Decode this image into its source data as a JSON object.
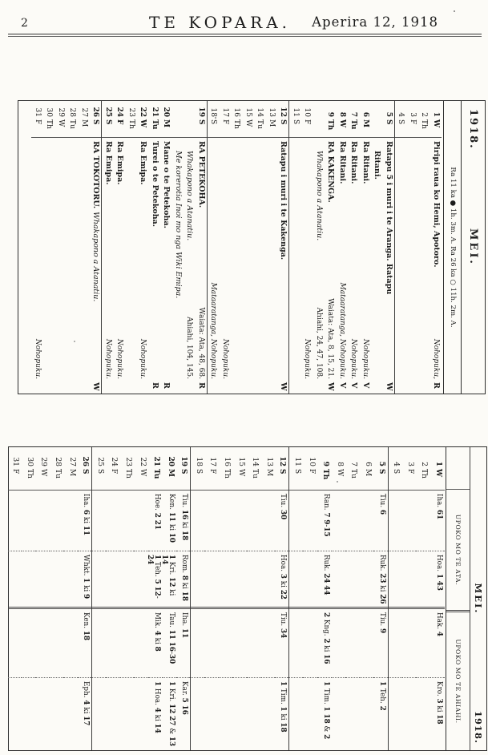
{
  "page": {
    "number": "2",
    "title": "TE KOPARA.",
    "date": "Aperira 12, 1918"
  },
  "calendar": {
    "year": "1918.",
    "month": "MEI.",
    "moon_line": "Ra 11 ka ● 1h. 3m. A.   Ra 26 ka ○ 11h. 2m. A.",
    "rows": [
      {
        "d": 1,
        "w": "W",
        "lines": [
          {
            "l": "Piripi raua ko Hemi, Apotoro.",
            "ls": "b",
            "r": "Nohopuku,",
            "rs": "i"
          }
        ],
        "c": "R"
      },
      {
        "d": 2,
        "w": "Th"
      },
      {
        "d": 3,
        "w": "F"
      },
      {
        "d": 4,
        "w": "S"
      },
      {
        "d": 5,
        "w": "S",
        "sun": true,
        "lines": [
          {
            "l": "Ratapu 5 i muri i te Aranga.  Ratapu",
            "ls": "b"
          },
          {
            "l": "Ritani.",
            "ls": "b",
            "ind": true
          }
        ],
        "c": "W"
      },
      {
        "d": 6,
        "w": "M",
        "lines": [
          {
            "l": "Ra Ritani.",
            "ls": "b",
            "r": "Nohopuku.",
            "rs": "i"
          }
        ],
        "c": "V"
      },
      {
        "d": 7,
        "w": "Tu",
        "lines": [
          {
            "l": "Ra Ritani.",
            "ls": "b",
            "r": "Nohopuku.",
            "rs": "i"
          }
        ],
        "c": "V"
      },
      {
        "d": 8,
        "w": "W",
        "lines": [
          {
            "l": "Ra Ritani.",
            "ls": "b",
            "r": "Mataaratanga, Nohopuku.",
            "rs": "i"
          }
        ],
        "c": "V"
      },
      {
        "d": 9,
        "w": "Th",
        "lines": [
          {
            "l": "RA KAKENGA.",
            "ls": "b",
            "r": "Waiata: Ata, 8, 15, 21.",
            "rs": "n"
          },
          {
            "l": "Whakapono a Atanatiu.",
            "ls": "i",
            "ind": true,
            "r": "Ahiahi, 24, 47, 108.",
            "rs": "n"
          }
        ],
        "c": "W"
      },
      {
        "d": 10,
        "w": "F",
        "lines": [
          {
            "r": "Nohopuku.",
            "rs": "i"
          }
        ]
      },
      {
        "d": 11,
        "w": "S"
      },
      {
        "d": 12,
        "w": "S",
        "sun": true,
        "lines": [
          {
            "l": "Ratapu i muri i te Kakenga.",
            "ls": "b"
          }
        ],
        "c": "W"
      },
      {
        "d": 13,
        "w": "M"
      },
      {
        "d": 14,
        "w": "Tu"
      },
      {
        "d": 15,
        "w": "W"
      },
      {
        "d": 16,
        "w": "Th"
      },
      {
        "d": 17,
        "w": "F",
        "lines": [
          {
            "r": "Nohopuku.",
            "rs": "i"
          }
        ]
      },
      {
        "d": 18,
        "w": "S",
        "lines": [
          {
            "r": "Mataaratanga, Nohopuku.",
            "rs": "i"
          }
        ]
      },
      {
        "d": 19,
        "w": "S",
        "sun": true,
        "lines": [
          {
            "l": "RA PETEKOHA.",
            "ls": "b",
            "r": "Waiata: Ata, 48, 68.",
            "rs": "n"
          },
          {
            "l": "Whakapono a Atanatiu.",
            "ls": "i",
            "ind": true,
            "r": "Ahiahi, 104, 145.",
            "rs": "n"
          },
          {
            "l": "Me korerotia Inoi mo nga Wiki Emipa.",
            "ls": "i",
            "ind": true
          }
        ],
        "c": "R"
      },
      {
        "d": 20,
        "w": "M",
        "lines": [
          {
            "l": "Mane o te Petekoha.",
            "ls": "b"
          }
        ],
        "c": "R"
      },
      {
        "d": 21,
        "w": "Tu",
        "lines": [
          {
            "l": "Turei o te Petekoha.",
            "ls": "b"
          }
        ],
        "c": "R"
      },
      {
        "d": 22,
        "w": "W",
        "lines": [
          {
            "l": "Ra Emipa.",
            "ls": "b",
            "r": "Nohopuku.",
            "rs": "i"
          }
        ]
      },
      {
        "d": 23,
        "w": "Th"
      },
      {
        "d": 24,
        "w": "F",
        "lines": [
          {
            "l": "Ra Emipa.",
            "ls": "b",
            "r": "Nohopuku.",
            "rs": "i"
          }
        ]
      },
      {
        "d": 25,
        "w": "S",
        "lines": [
          {
            "l": "Ra Emipa.",
            "ls": "b",
            "r": "Nohopuku.",
            "rs": "i"
          }
        ]
      },
      {
        "d": 26,
        "w": "S",
        "sun": true,
        "lines": [
          {
            "l": "RA TOKOTORU.",
            "ls": "b",
            "l2": "Whakapono a Atanatiu.",
            "l2s": "i"
          }
        ],
        "c": "W"
      },
      {
        "d": 27,
        "w": "M"
      },
      {
        "d": 28,
        "w": "Tu"
      },
      {
        "d": 29,
        "w": "W"
      },
      {
        "d": 30,
        "w": "Th"
      },
      {
        "d": 31,
        "w": "F",
        "lines": [
          {
            "r": "Nohopuku.",
            "rs": "i"
          }
        ]
      }
    ]
  },
  "lectionary": {
    "month": "MEI.",
    "year": "1918.",
    "morning_header": "UPOKO MO TE ATA.",
    "evening_header": "UPOKO MO TE AHIAHI.",
    "rows": [
      {
        "d": 1,
        "w": "W",
        "m1": "Iha. 61",
        "m2": "Hoa. 1 43",
        "e1": "Hak. 4",
        "e2": "Kro. 3 ki 18"
      },
      {
        "d": 2,
        "w": "Th"
      },
      {
        "d": 3,
        "w": "F"
      },
      {
        "d": 4,
        "w": "S"
      },
      {
        "d": 5,
        "w": "S",
        "sun": true,
        "m1": "Tiu. 6",
        "m2": "Ruk. 23 ki 26",
        "e1": "Tiu. 9",
        "e2": "1 Teh. 2"
      },
      {
        "d": 6,
        "w": "M"
      },
      {
        "d": 7,
        "w": "Tu"
      },
      {
        "d": 8,
        "w": "W"
      },
      {
        "d": 9,
        "w": "Th",
        "m1": "Ran. 7 9-15",
        "m2": "Ruk. 24 44",
        "e1": "2 Kng. 2 ki 16",
        "e2": "1 Tim. 1 18 & 2"
      },
      {
        "d": 10,
        "w": "F"
      },
      {
        "d": 11,
        "w": "S"
      },
      {
        "d": 12,
        "w": "S",
        "sun": true,
        "m1": "Tiu. 30",
        "m2": "Hoa. 3 ki 22",
        "e1": "Tiu. 34",
        "e2": "1 Tim. 1 ki 18"
      },
      {
        "d": 13,
        "w": "M"
      },
      {
        "d": 14,
        "w": "Tu"
      },
      {
        "d": 15,
        "w": "W"
      },
      {
        "d": 16,
        "w": "Th"
      },
      {
        "d": 17,
        "w": "F"
      },
      {
        "d": 18,
        "w": "S"
      },
      {
        "d": 19,
        "w": "S",
        "sun": true,
        "m1": "Tiu. 16 ki 18",
        "m2": "Rom. 8 ki 18",
        "e1": "Iha. 11",
        "e2": "Kar. 5 16"
      },
      {
        "d": 20,
        "w": "M",
        "m1": "Ken. 11 ki 10",
        "m2": "1 Kri. 12 ki 14",
        "e1": "Tau. 11 16-30",
        "e2": "1 Kri. 12 27 & 13"
      },
      {
        "d": 21,
        "w": "Tu",
        "m1": "Hoe. 2 21",
        "m2": "1 Teh. 5 12-24",
        "e1": "Mik. 4 ki 8",
        "e2": "1 Hoa. 4 ki 14"
      },
      {
        "d": 22,
        "w": "W"
      },
      {
        "d": 23,
        "w": "Th"
      },
      {
        "d": 24,
        "w": "F"
      },
      {
        "d": 25,
        "w": "S"
      },
      {
        "d": 26,
        "w": "S",
        "sun": true,
        "m1": "Iha. 6 ki 11",
        "m2": "Whkt. 1 ki 9",
        "e1": "Ken. 18",
        "e2": "Eph. 4 ki 17"
      },
      {
        "d": 27,
        "w": "M"
      },
      {
        "d": 28,
        "w": "Tu"
      },
      {
        "d": 29,
        "w": "W"
      },
      {
        "d": 30,
        "w": "Th"
      },
      {
        "d": 31,
        "w": "F"
      }
    ]
  },
  "colors": {
    "ink": "#1b1b1b",
    "paper": "#fcfbf7"
  }
}
